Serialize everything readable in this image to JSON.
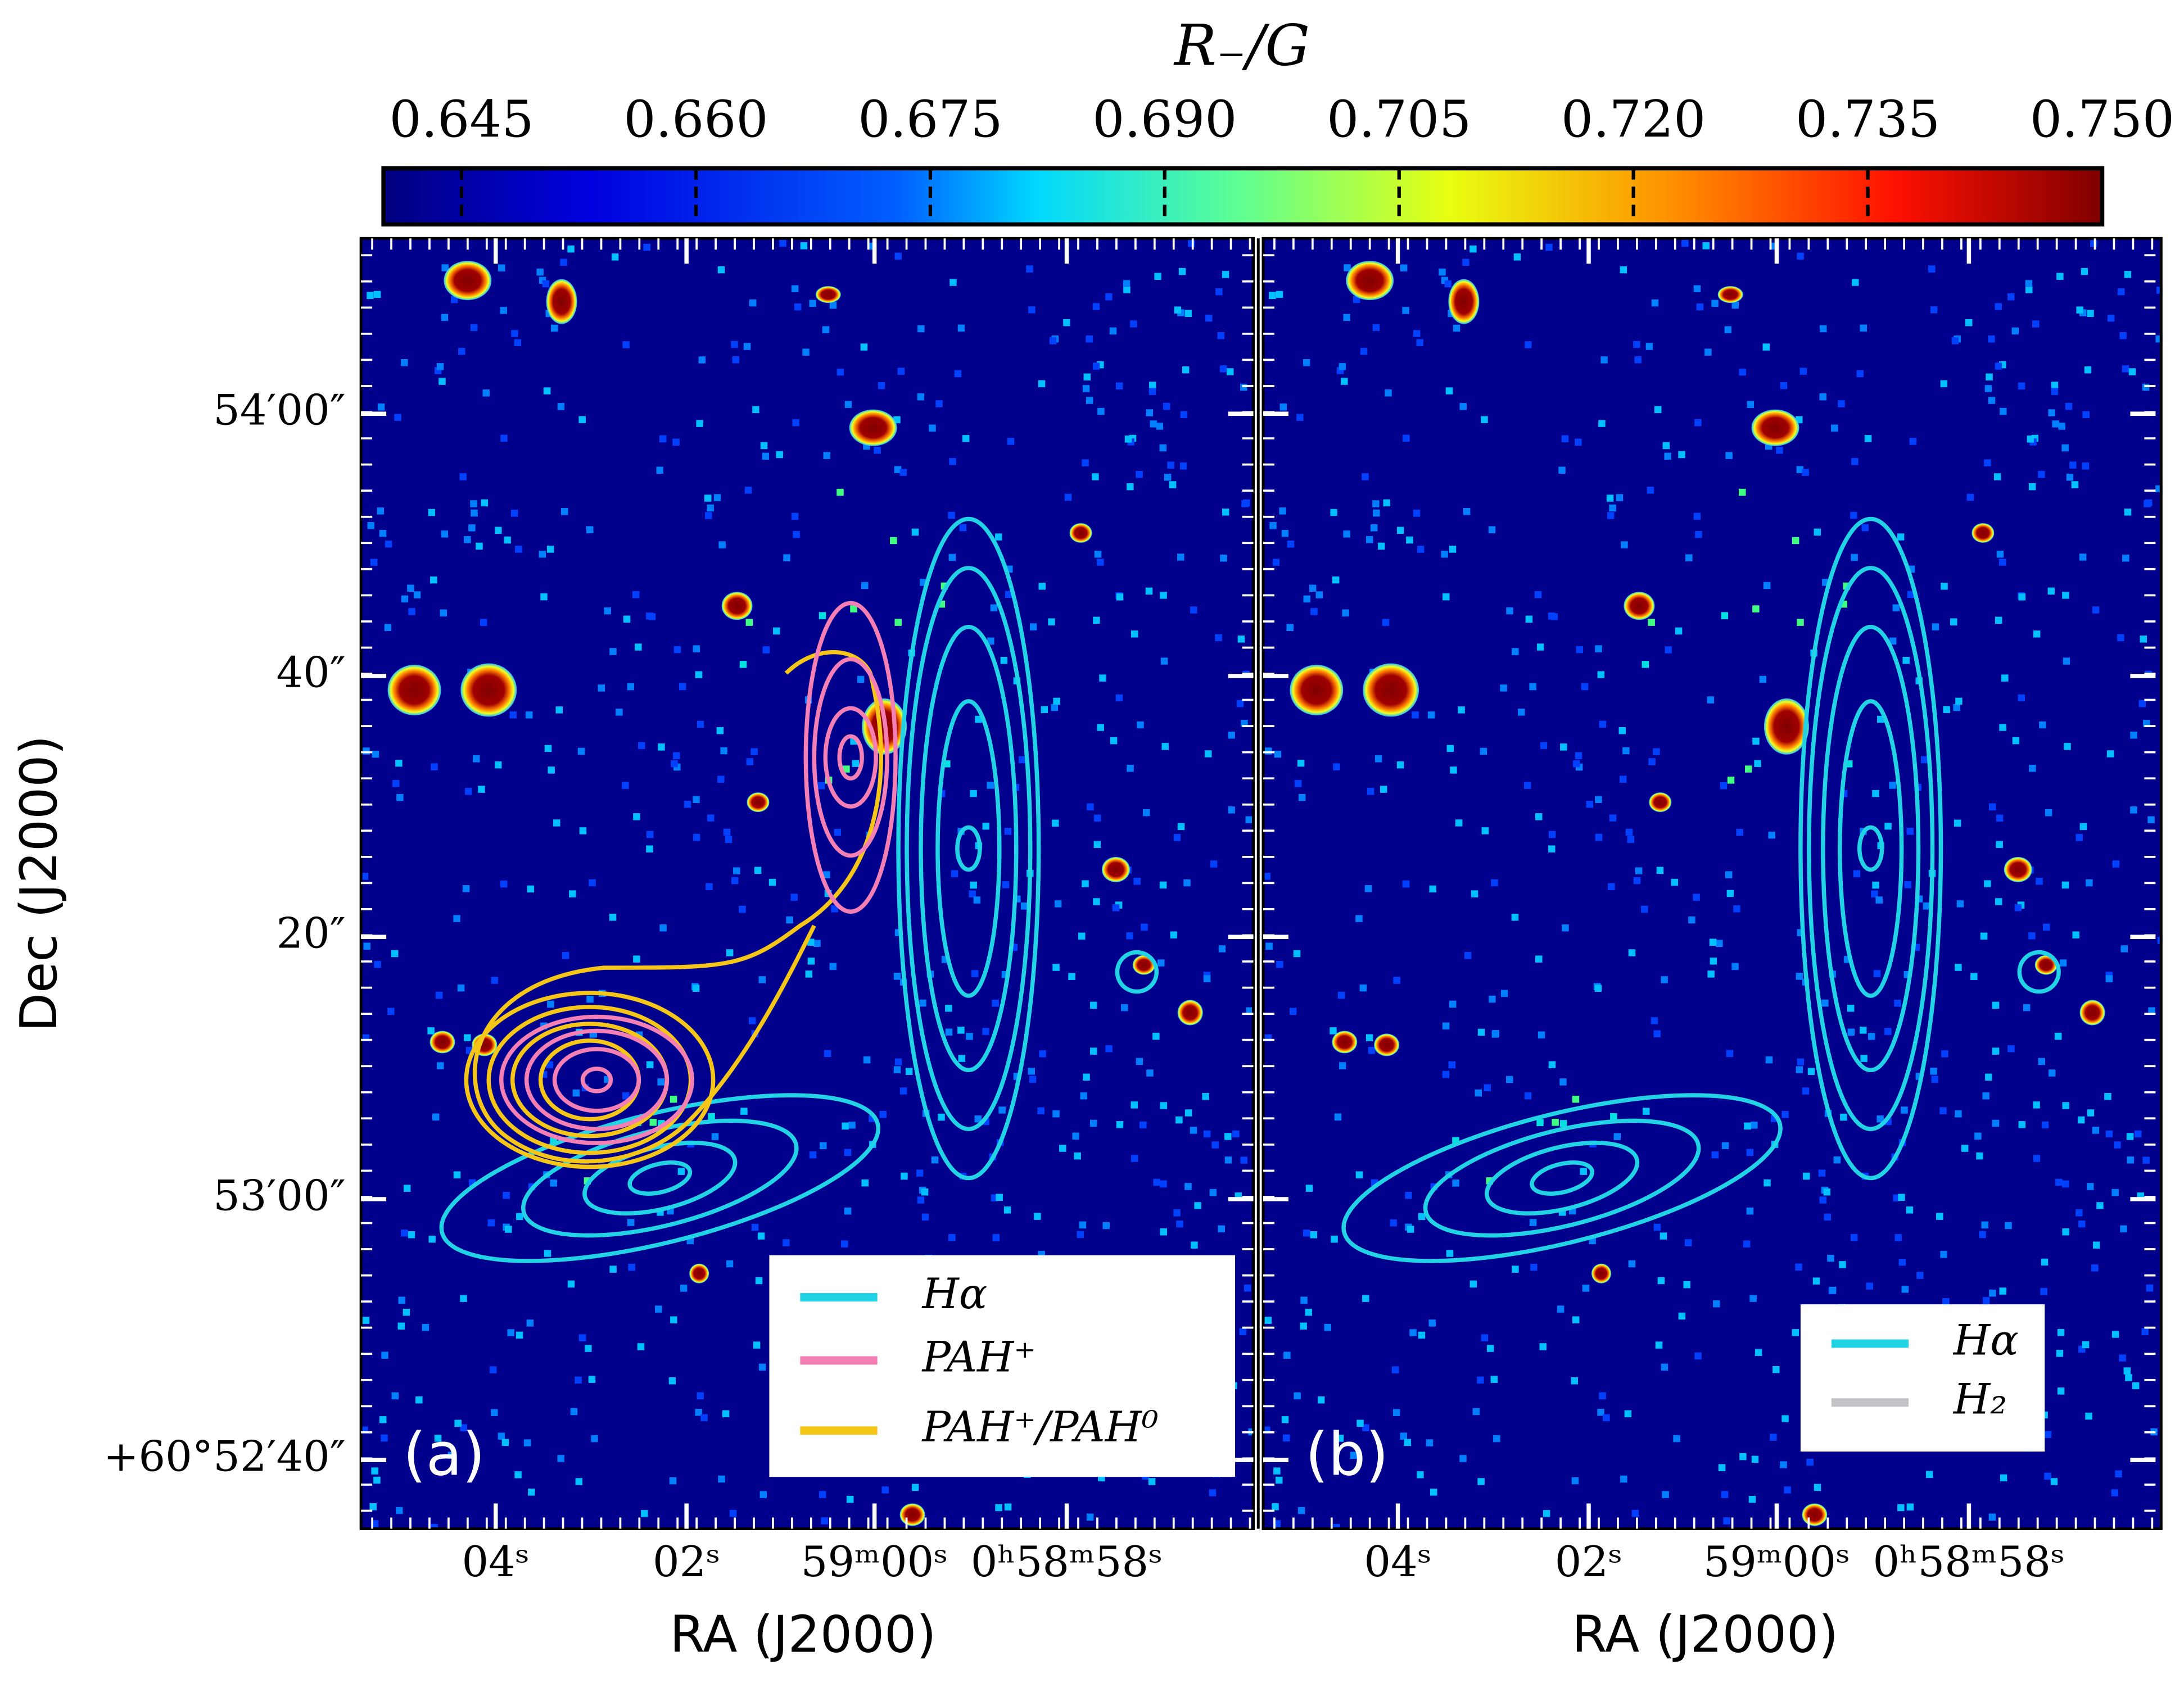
{
  "colorbar": {
    "label": "R₋/G",
    "lim": [
      0.64,
      0.75
    ],
    "ticks": [
      {
        "value": 0.645,
        "label": "0.645"
      },
      {
        "value": 0.66,
        "label": "0.660"
      },
      {
        "value": 0.675,
        "label": "0.675"
      },
      {
        "value": 0.69,
        "label": "0.690"
      },
      {
        "value": 0.705,
        "label": "0.705"
      },
      {
        "value": 0.72,
        "label": "0.720"
      },
      {
        "value": 0.735,
        "label": "0.735"
      },
      {
        "value": 0.75,
        "label": "0.750"
      }
    ]
  },
  "y_label": "Dec (J2000)",
  "y_ticks": [
    "54′00″",
    "40″",
    "20″",
    "53′00″",
    "+60°52′40″"
  ],
  "panels": [
    {
      "label": "(a)",
      "x_label": "RA (J2000)",
      "x_ticks": [
        "04ˢ",
        "02ˢ",
        "59ᵐ00ˢ",
        "0ʰ58ᵐ58ˢ"
      ],
      "legend": [
        {
          "name": "Hα",
          "color": "#22d3e6"
        },
        {
          "name": "PAH⁺",
          "color": "#f47fb4"
        },
        {
          "name": "PAH⁺/PAH⁰",
          "color": "#f5c518"
        }
      ]
    },
    {
      "label": "(b)",
      "x_label": "RA (J2000)",
      "x_ticks": [
        "04ˢ",
        "02ˢ",
        "59ᵐ00ˢ",
        "0ʰ58ᵐ58ˢ"
      ],
      "legend": [
        {
          "name": "Hα",
          "color": "#22d3e6"
        },
        {
          "name": "H₂",
          "color": "#c4c4c8"
        }
      ]
    }
  ]
}
